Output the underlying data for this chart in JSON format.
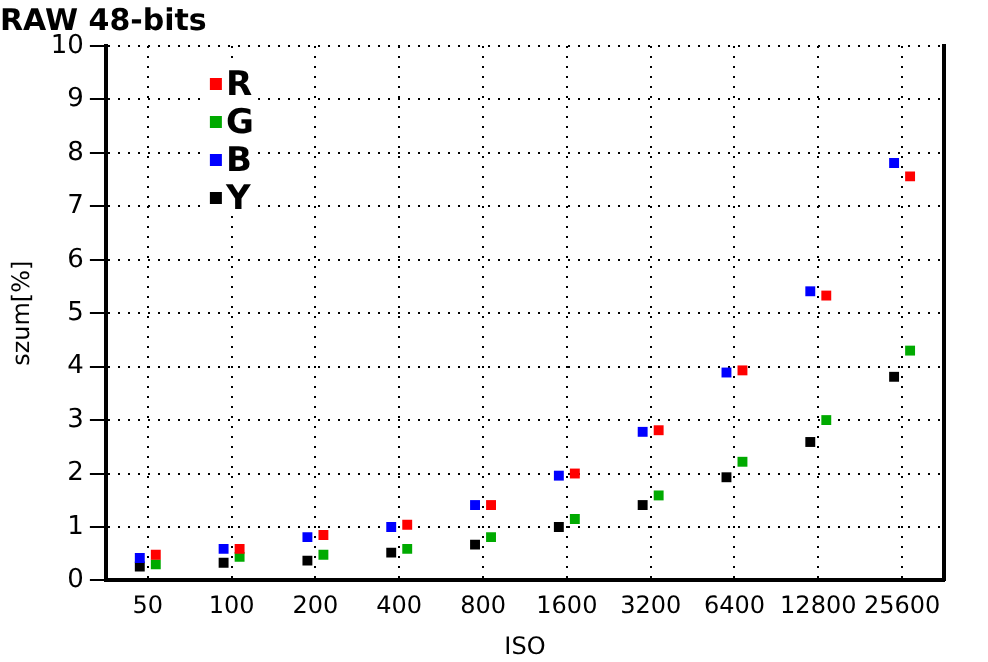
{
  "chart_data": {
    "type": "scatter",
    "title": "RAW 48-bits",
    "xlabel": "ISO",
    "ylabel": "szum[%]",
    "categories": [
      "50",
      "100",
      "200",
      "400",
      "800",
      "1600",
      "3200",
      "6400",
      "12800",
      "25600"
    ],
    "series": [
      {
        "name": "R",
        "color": "#ff0000",
        "values": [
          0.48,
          0.59,
          0.85,
          1.04,
          1.41,
          2.0,
          2.81,
          3.93,
          5.33,
          7.56
        ]
      },
      {
        "name": "G",
        "color": "#00aa00",
        "values": [
          0.3,
          0.44,
          0.48,
          0.59,
          0.81,
          1.15,
          1.59,
          2.22,
          3.0,
          4.3
        ]
      },
      {
        "name": "B",
        "color": "#0000ff",
        "values": [
          0.42,
          0.59,
          0.81,
          1.0,
          1.41,
          1.96,
          2.78,
          3.89,
          5.41,
          7.81
        ]
      },
      {
        "name": "Y",
        "color": "#000000",
        "values": [
          0.26,
          0.33,
          0.37,
          0.52,
          0.67,
          1.0,
          1.41,
          1.93,
          2.59,
          3.81
        ]
      }
    ],
    "ylim": [
      0,
      10
    ],
    "yticks": [
      0,
      1,
      2,
      3,
      4,
      5,
      6,
      7,
      8,
      9,
      10
    ],
    "grid": true,
    "legend": "top left",
    "marker": "square"
  }
}
